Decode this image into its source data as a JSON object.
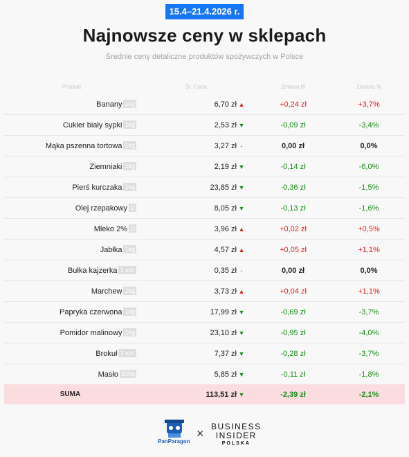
{
  "header": {
    "date_range": "15.4–21.4.2026 r.",
    "title": "Najnowsze ceny w sklepach",
    "subtitle": "Średnie ceny detaliczne produktów spożywczych w Polsce"
  },
  "chart_data": {
    "type": "table",
    "columns": [
      "Produkt",
      "Śr. Cena",
      "Zmiana t/t",
      "Zmiana %"
    ],
    "rows": [
      {
        "product": "Banany",
        "unit": "1kg",
        "price": "6,70 zł",
        "trend": "up",
        "change": "+0,24 zł",
        "change_pct": "+3,7%"
      },
      {
        "product": "Cukier biały sypki",
        "unit": "1kg",
        "price": "2,53 zł",
        "trend": "down",
        "change": "-0,09 zł",
        "change_pct": "-3,4%"
      },
      {
        "product": "Mąka pszenna tortowa",
        "unit": "1kg",
        "price": "3,27 zł",
        "trend": "flat",
        "change": "0,00 zł",
        "change_pct": "0,0%"
      },
      {
        "product": "Ziemniaki",
        "unit": "1kg",
        "price": "2,19 zł",
        "trend": "down",
        "change": "-0,14 zł",
        "change_pct": "-6,0%"
      },
      {
        "product": "Pierś kurczaka",
        "unit": "1kg",
        "price": "23,85 zł",
        "trend": "down",
        "change": "-0,36 zł",
        "change_pct": "-1,5%"
      },
      {
        "product": "Olej rzepakowy",
        "unit": "1l",
        "price": "8,05 zł",
        "trend": "down",
        "change": "-0,13 zł",
        "change_pct": "-1,6%"
      },
      {
        "product": "Mleko 2%",
        "unit": "1l",
        "price": "3,96 zł",
        "trend": "up",
        "change": "+0,02 zł",
        "change_pct": "+0,5%"
      },
      {
        "product": "Jabłka",
        "unit": "1kg",
        "price": "4,57 zł",
        "trend": "up",
        "change": "+0,05 zł",
        "change_pct": "+1,1%"
      },
      {
        "product": "Bułka kajzerka",
        "unit": "1 szt.",
        "price": "0,35 zł",
        "trend": "flat",
        "change": "0,00 zł",
        "change_pct": "0,0%"
      },
      {
        "product": "Marchew",
        "unit": "1kg",
        "price": "3,73 zł",
        "trend": "up",
        "change": "+0,04 zł",
        "change_pct": "+1,1%"
      },
      {
        "product": "Papryka czerwona",
        "unit": "1kg",
        "price": "17,99 zł",
        "trend": "down",
        "change": "-0,69 zł",
        "change_pct": "-3,7%"
      },
      {
        "product": "Pomidor malinowy",
        "unit": "1kg",
        "price": "23,10 zł",
        "trend": "down",
        "change": "-0,95 zł",
        "change_pct": "-4,0%"
      },
      {
        "product": "Brokuł",
        "unit": "1 szt.",
        "price": "7,37 zł",
        "trend": "down",
        "change": "-0,28 zł",
        "change_pct": "-3,7%"
      },
      {
        "product": "Masło",
        "unit": "200g",
        "price": "5,85 zł",
        "trend": "down",
        "change": "-0,11 zł",
        "change_pct": "-1,8%"
      }
    ],
    "total": {
      "label": "SUMA",
      "price": "113,51 zł",
      "trend": "down",
      "change": "-2,39 zł",
      "change_pct": "-2,1%"
    }
  },
  "icons": {
    "up": "▲",
    "down": "▼",
    "flat": "-"
  },
  "colors": {
    "up": "#e02020",
    "down": "#1a8a1a",
    "badge": "#1676f3",
    "sum_row": "#fbdde0"
  },
  "footer": {
    "panparagon_logo": "PanParagon",
    "separator": "×",
    "bi_line1": "BUSINESS",
    "bi_line2": "INSIDER",
    "bi_line3": "POLSKA"
  }
}
